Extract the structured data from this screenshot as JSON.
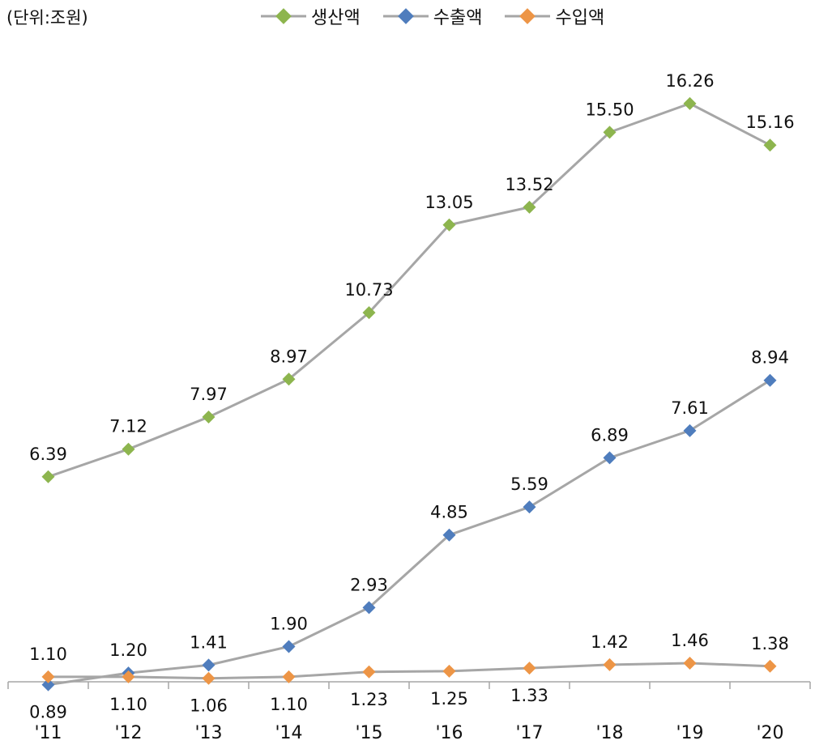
{
  "unit_label": "(단위:조원)",
  "chart_data": {
    "type": "line",
    "categories": [
      "'11",
      "'12",
      "'13",
      "'14",
      "'15",
      "'16",
      "'17",
      "'18",
      "'19",
      "'20"
    ],
    "ylim": [
      0,
      17
    ],
    "grid": false,
    "legend_position": "top",
    "series": [
      {
        "name": "생산액",
        "color": "#8DB54E",
        "values": [
          6.39,
          7.12,
          7.97,
          8.97,
          10.73,
          13.05,
          13.52,
          15.5,
          16.26,
          15.16
        ],
        "labels": [
          "6.39",
          "7.12",
          "7.97",
          "8.97",
          "10.73",
          "13.05",
          "13.52",
          "15.50",
          "16.26",
          "15.16"
        ]
      },
      {
        "name": "수출액",
        "color": "#4F7DBD",
        "values": [
          0.89,
          1.2,
          1.41,
          1.9,
          2.93,
          4.85,
          5.59,
          6.89,
          7.61,
          8.94
        ],
        "labels": [
          "0.89",
          "1.20",
          "1.41",
          "1.90",
          "2.93",
          "4.85",
          "5.59",
          "6.89",
          "7.61",
          "8.94"
        ]
      },
      {
        "name": "수입액",
        "color": "#ED9546",
        "values": [
          1.1,
          1.1,
          1.06,
          1.1,
          1.23,
          1.25,
          1.33,
          1.42,
          1.46,
          1.38
        ],
        "labels": [
          "1.10",
          "1.10",
          "1.06",
          "1.10",
          "1.23",
          "1.25",
          "1.33",
          "1.42",
          "1.46",
          "1.38"
        ]
      }
    ]
  }
}
